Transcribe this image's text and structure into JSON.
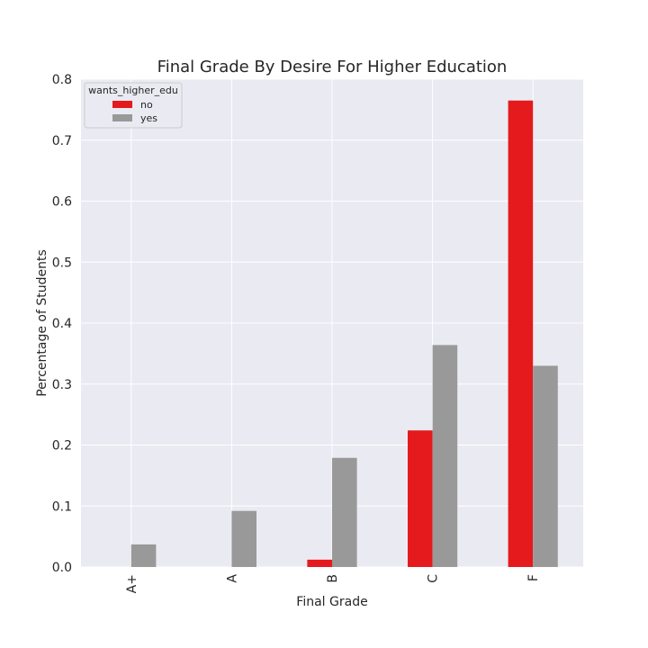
{
  "chart_data": {
    "type": "bar",
    "title": "Final Grade By Desire For Higher Education",
    "xlabel": "Final Grade",
    "ylabel": "Percentage of Students",
    "categories": [
      "A+",
      "A",
      "B",
      "C",
      "F"
    ],
    "series": [
      {
        "name": "no",
        "color": "#e41a1c",
        "values": [
          0.0,
          0.0,
          0.012,
          0.224,
          0.765
        ]
      },
      {
        "name": "yes",
        "color": "#999999",
        "values": [
          0.037,
          0.092,
          0.179,
          0.364,
          0.33
        ]
      }
    ],
    "ylim": [
      0,
      0.8
    ],
    "yticks": [
      "0.0",
      "0.1",
      "0.2",
      "0.3",
      "0.4",
      "0.5",
      "0.6",
      "0.7",
      "0.8"
    ],
    "grid": true,
    "legend": {
      "title": "wants_higher_edu",
      "placement": "top-left"
    },
    "background_color": "#eaeaf2"
  }
}
